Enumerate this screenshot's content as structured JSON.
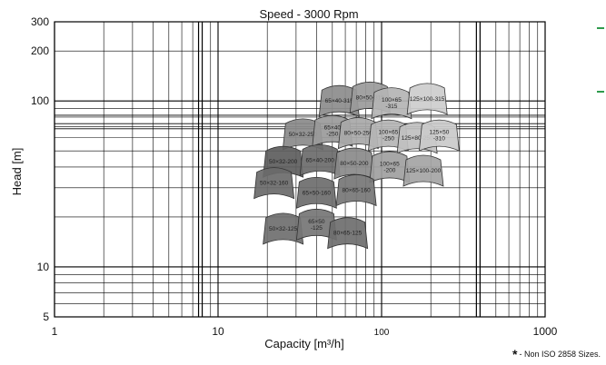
{
  "chart_data": {
    "type": "scatter",
    "title": "Speed - 3000 Rpm",
    "xlabel": "Capacity [m³/h]",
    "ylabel": "Head [m]",
    "x_scale": "log",
    "y_scale": "log",
    "xlim": [
      1,
      1000
    ],
    "ylim": [
      5,
      300
    ],
    "x_ticks": [
      "1",
      "10",
      "100",
      "1000"
    ],
    "y_ticks": [
      "5",
      "10",
      "100",
      "200",
      "300"
    ],
    "grid": true,
    "pump_sizes": [
      {
        "label": "65×40-315",
        "x": 55,
        "y": 100,
        "shade": "#8c8c8c"
      },
      {
        "label": "80×50-315",
        "x": 85,
        "y": 105,
        "shade": "#9a9a9a"
      },
      {
        "label": "100×65\n-315",
        "x": 115,
        "y": 97,
        "shade": "#b4b4b4"
      },
      {
        "label": "125×100-315",
        "x": 190,
        "y": 103,
        "shade": "#cdcdcd"
      },
      {
        "label": "50×32-250",
        "x": 33,
        "y": 63,
        "shade": "#8a8a8a"
      },
      {
        "label": "65×40\n-250",
        "x": 50,
        "y": 66,
        "shade": "#9a9a9a"
      },
      {
        "label": "80×50-250",
        "x": 72,
        "y": 64,
        "shade": "#a8a8a8"
      },
      {
        "label": "100×65\n-250",
        "x": 110,
        "y": 62,
        "shade": "#b5b5b5"
      },
      {
        "label": "125×80-250",
        "x": 165,
        "y": 60,
        "shade": "#c0c0c0"
      },
      {
        "label": "125×50\n-310",
        "x": 225,
        "y": 62,
        "shade": "#cacaca"
      },
      {
        "label": "50×32-200",
        "x": 25,
        "y": 43,
        "shade": "#5d5d5d"
      },
      {
        "label": "65×40-200",
        "x": 42,
        "y": 44,
        "shade": "#6b6b6b"
      },
      {
        "label": "80×50-200",
        "x": 68,
        "y": 42,
        "shade": "#8a8a8a"
      },
      {
        "label": "100×65\n-200",
        "x": 112,
        "y": 40,
        "shade": "#a0a0a0"
      },
      {
        "label": "125×100-200",
        "x": 180,
        "y": 38,
        "shade": "#a4a4a4"
      },
      {
        "label": "50×32-160",
        "x": 22,
        "y": 32,
        "shade": "#6a6a6a"
      },
      {
        "label": "65×50-160",
        "x": 40,
        "y": 28,
        "shade": "#6c6c6c"
      },
      {
        "label": "80×65-160",
        "x": 70,
        "y": 29,
        "shade": "#767676"
      },
      {
        "label": "50×32-125",
        "x": 25,
        "y": 17,
        "shade": "#6f6f6f"
      },
      {
        "label": "65×50\n-125",
        "x": 40,
        "y": 18,
        "shade": "#757575"
      },
      {
        "label": "80×65-125",
        "x": 62,
        "y": 16,
        "shade": "#6e6e6e"
      }
    ]
  },
  "footnote": {
    "marker": "*",
    "text": "- Non ISO 2858 Sizes."
  },
  "colors": {
    "grid": "#000000",
    "accent": "#2e9b4d"
  }
}
